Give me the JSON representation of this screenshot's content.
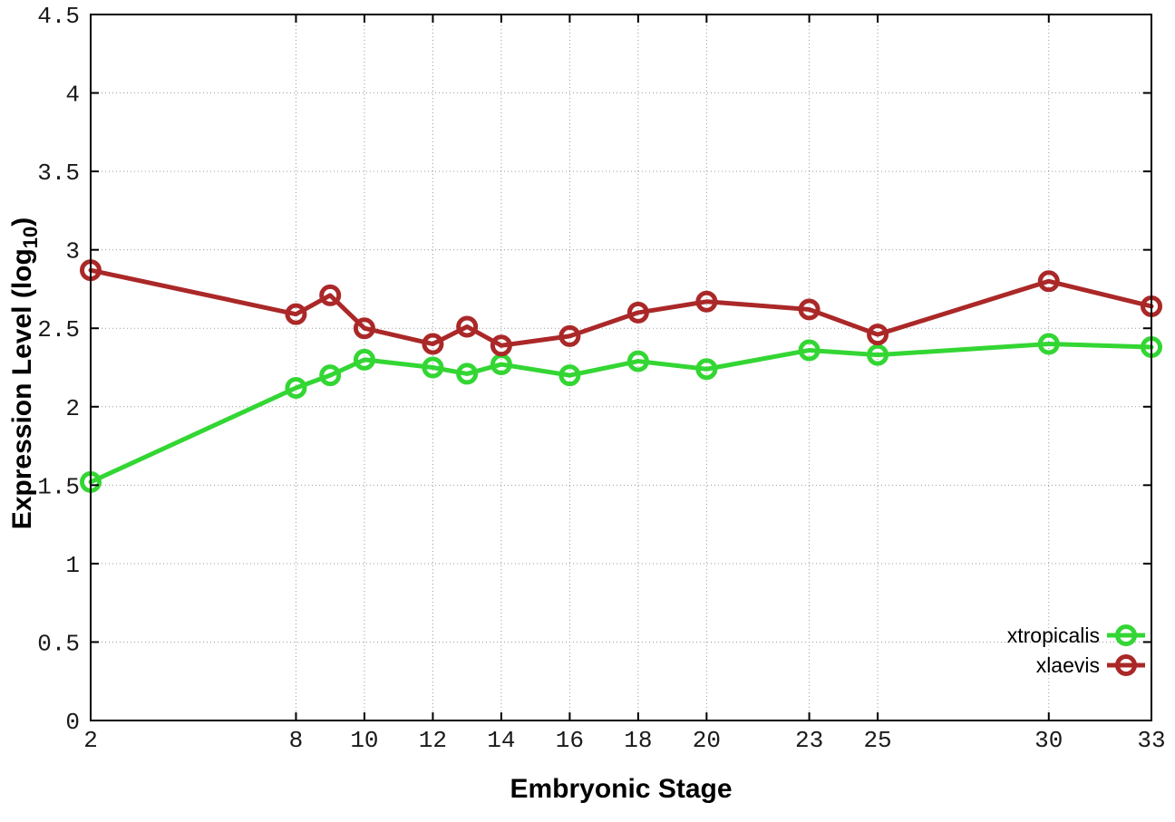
{
  "chart_data": {
    "type": "line",
    "title": "",
    "xlabel": "Embryonic Stage",
    "ylabel": "Expression Level (log10)",
    "ylabel_parts": {
      "prefix": "Expression Level (log",
      "sub": "10",
      "suffix": ")"
    },
    "x": [
      2,
      8,
      9,
      10,
      12,
      13,
      14,
      16,
      18,
      20,
      23,
      25,
      30,
      33
    ],
    "series": [
      {
        "name": "xtropicalis",
        "color": "#33d633",
        "marker": "open-circle",
        "values": [
          1.52,
          2.12,
          2.2,
          2.3,
          2.25,
          2.21,
          2.27,
          2.2,
          2.29,
          2.24,
          2.36,
          2.33,
          2.4,
          2.38
        ]
      },
      {
        "name": "xlaevis",
        "color": "#ab2828",
        "marker": "open-circle",
        "values": [
          2.87,
          2.59,
          2.71,
          2.5,
          2.4,
          2.51,
          2.39,
          2.45,
          2.6,
          2.67,
          2.62,
          2.46,
          2.8,
          2.64
        ]
      }
    ],
    "xticks": [
      2,
      8,
      10,
      12,
      14,
      16,
      18,
      20,
      23,
      25,
      30,
      33
    ],
    "xtick_labels": [
      "2",
      "8",
      "10",
      "12",
      "14",
      "16",
      "18",
      "20",
      "23",
      "25",
      "30",
      "33"
    ],
    "yticks": [
      0,
      0.5,
      1,
      1.5,
      2,
      2.5,
      3,
      3.5,
      4,
      4.5
    ],
    "ytick_labels": [
      "0",
      "0.5",
      "1",
      "1.5",
      "2",
      "2.5",
      "3",
      "3.5",
      "4",
      "4.5"
    ],
    "xlim": [
      2,
      33
    ],
    "ylim": [
      0,
      4.5
    ],
    "grid": true,
    "grid_style": "dotted",
    "legend_position": "inside-bottom-right",
    "background_color": "#ffffff",
    "border_color": "#000000"
  }
}
